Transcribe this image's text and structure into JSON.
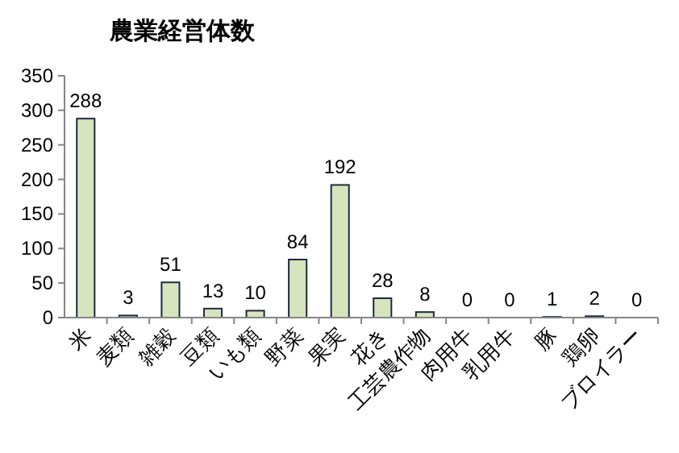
{
  "chart_data": {
    "type": "bar",
    "title": "農業経営体数",
    "categories": [
      "米",
      "麦類",
      "雑穀",
      "豆類",
      "いも類",
      "野菜",
      "果実",
      "花き",
      "工芸農作物",
      "肉用牛",
      "乳用牛",
      "豚",
      "鶏卵",
      "ブロイラー"
    ],
    "values": [
      288,
      3,
      51,
      13,
      10,
      84,
      192,
      28,
      8,
      0,
      0,
      1,
      2,
      0
    ],
    "color": "#d7e4bd",
    "ylim": [
      0,
      350
    ],
    "yticks": [
      0,
      50,
      100,
      150,
      200,
      250,
      300,
      350
    ],
    "data_labels": true,
    "grid": false
  }
}
